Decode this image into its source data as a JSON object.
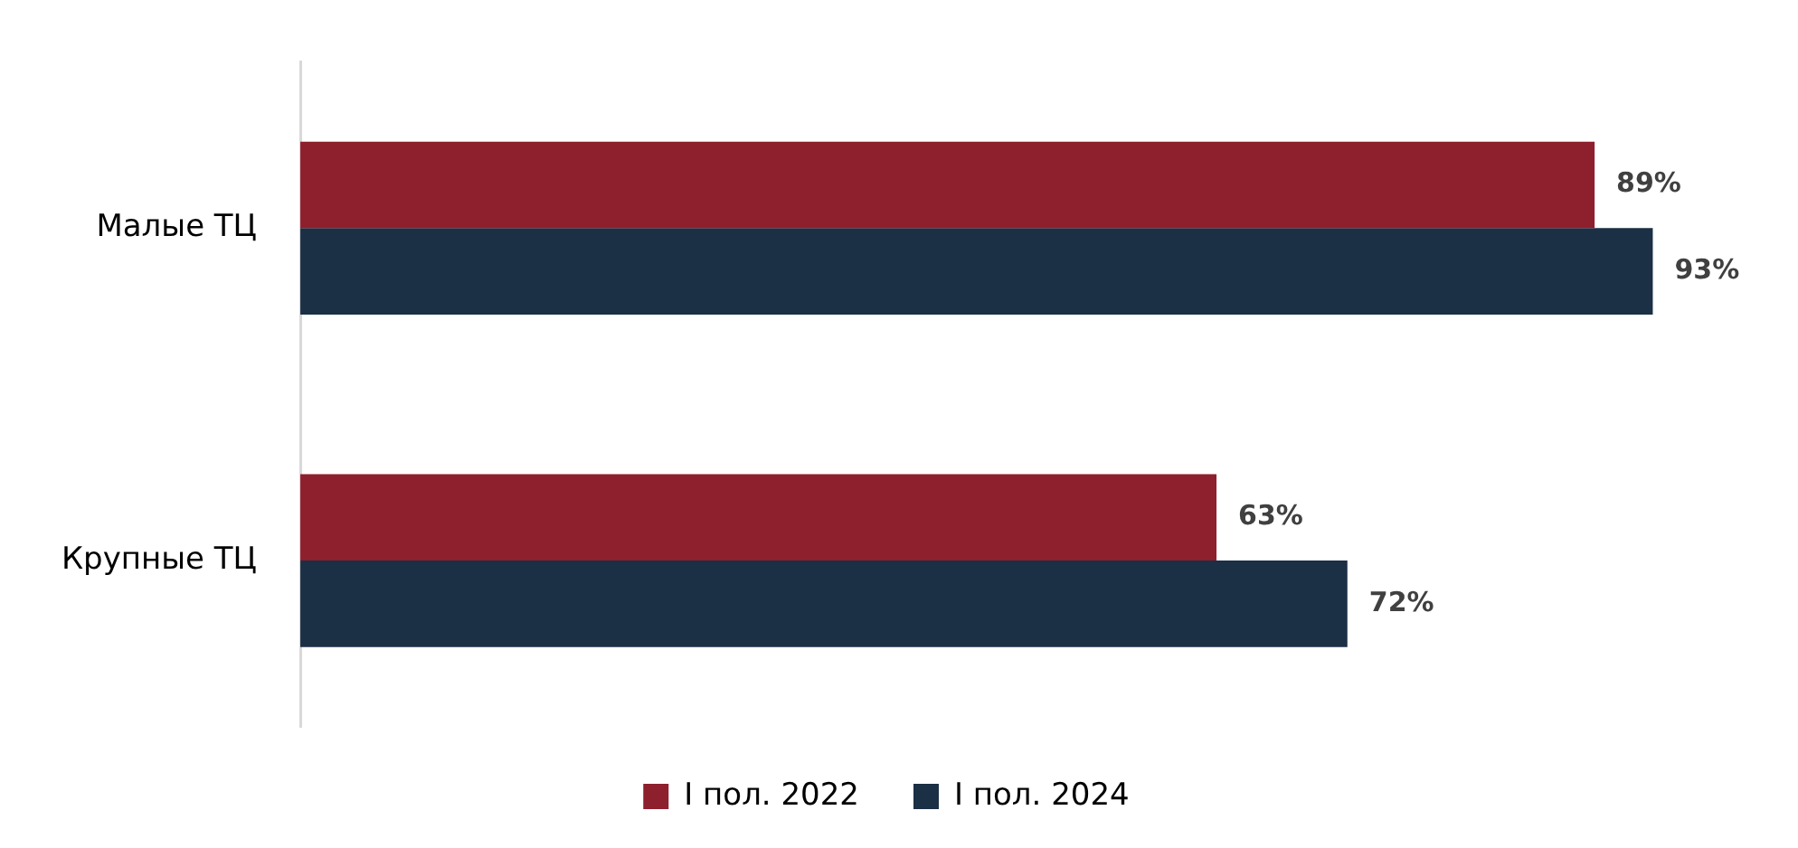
{
  "chart_data": {
    "type": "bar",
    "orientation": "horizontal",
    "categories": [
      "Малые ТЦ",
      "Крупные ТЦ"
    ],
    "series": [
      {
        "name": "I пол. 2022",
        "color": "#8e1f2d",
        "values": [
          89,
          63
        ],
        "value_labels": [
          "89%",
          "63%"
        ]
      },
      {
        "name": "I пол. 2024",
        "color": "#1b2f45",
        "values": [
          93,
          72
        ],
        "value_labels": [
          "93%",
          "72%"
        ]
      }
    ],
    "tick_labels": "y",
    "legend": "bottom"
  }
}
